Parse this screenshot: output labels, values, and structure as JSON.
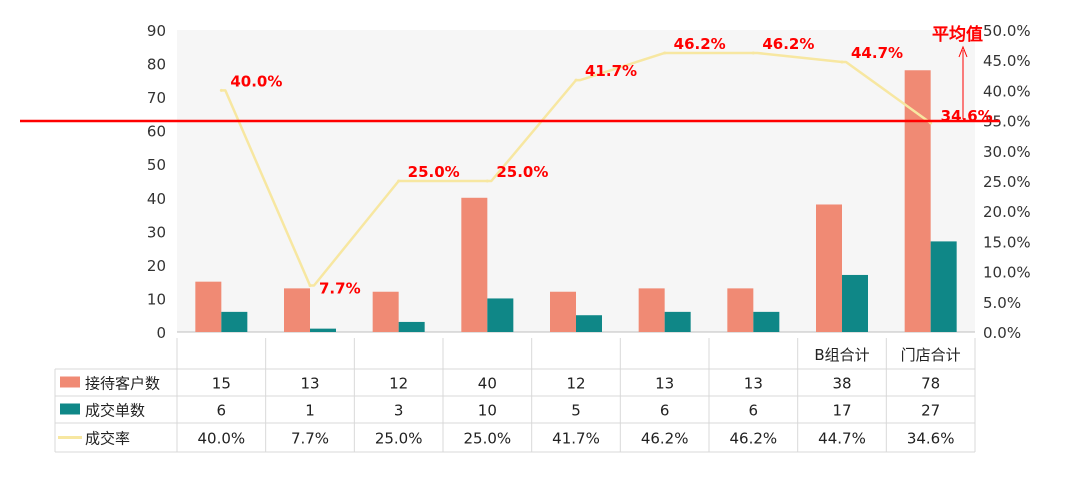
{
  "chart_data": {
    "type": "bar",
    "categories": [
      "",
      "",
      "",
      "",
      "",
      "",
      "",
      "B组合计",
      "门店合计"
    ],
    "series": [
      {
        "name": "接待客户数",
        "type": "bar",
        "axis": "left",
        "color": "#f08a74",
        "values": [
          15,
          13,
          12,
          40,
          12,
          13,
          13,
          38,
          78
        ],
        "display": [
          "15",
          "13",
          "12",
          "40",
          "12",
          "13",
          "13",
          "38",
          "78"
        ]
      },
      {
        "name": "成交单数",
        "type": "bar",
        "axis": "left",
        "color": "#0f8787",
        "values": [
          6,
          1,
          3,
          10,
          5,
          6,
          6,
          17,
          27
        ],
        "display": [
          "6",
          "1",
          "3",
          "10",
          "5",
          "6",
          "6",
          "17",
          "27"
        ]
      },
      {
        "name": "成交率",
        "type": "line",
        "axis": "right",
        "color": "#f7e7a1",
        "values": [
          40.0,
          7.7,
          25.0,
          25.0,
          41.7,
          46.2,
          46.2,
          44.7,
          34.6
        ],
        "display": [
          "40.0%",
          "7.7%",
          "25.0%",
          "25.0%",
          "41.7%",
          "46.2%",
          "46.2%",
          "44.7%",
          "34.6%"
        ]
      }
    ],
    "y_left": {
      "min": 0,
      "max": 90,
      "ticks": [
        "0",
        "10",
        "20",
        "30",
        "40",
        "50",
        "60",
        "70",
        "80",
        "90"
      ]
    },
    "y_right": {
      "min": 0,
      "max": 50,
      "ticks": [
        "0.0%",
        "5.0%",
        "10.0%",
        "15.0%",
        "20.0%",
        "25.0%",
        "30.0%",
        "35.0%",
        "40.0%",
        "45.0%",
        "50.0%"
      ]
    },
    "reference_line": {
      "label": "平均值",
      "value_right": 34.6,
      "color": "#ff0000"
    },
    "grid": false,
    "legend": "data-table-left"
  }
}
